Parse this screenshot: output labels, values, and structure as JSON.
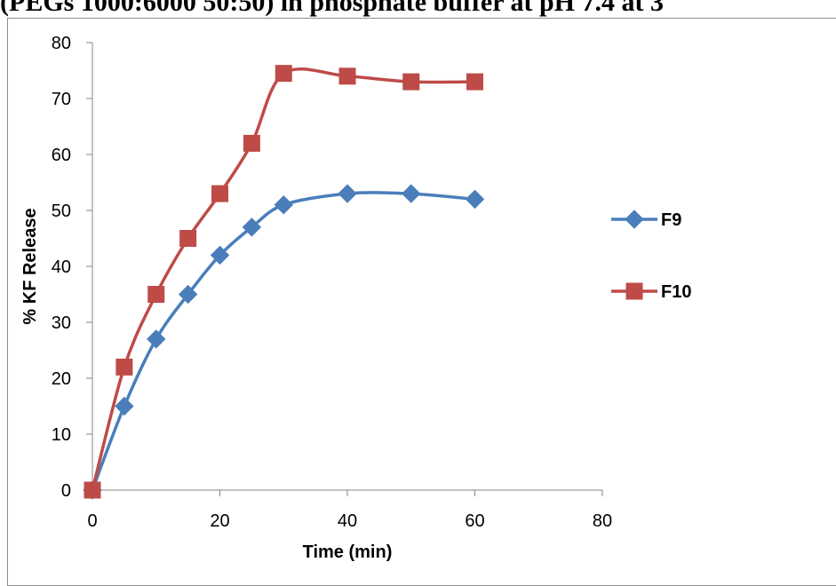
{
  "page": {
    "title_fragment": "(PEGs 1000:6000 50:50) in phosphate buffer at pH 7.4 at 3"
  },
  "chart_data": {
    "type": "line",
    "title": "",
    "xlabel": "Time (min)",
    "ylabel": "% KF Release",
    "xlim": [
      0,
      80
    ],
    "ylim": [
      0,
      80
    ],
    "xticks": [
      0,
      20,
      40,
      60,
      80
    ],
    "yticks": [
      0,
      10,
      20,
      30,
      40,
      50,
      60,
      70,
      80
    ],
    "grid": false,
    "legend": "right",
    "series": [
      {
        "name": "F9",
        "color": "#4a7ebb",
        "marker": "diamond",
        "x": [
          0,
          5,
          10,
          15,
          20,
          25,
          30,
          40,
          50,
          60
        ],
        "y": [
          0,
          15,
          27,
          35,
          42,
          47,
          51,
          53,
          53,
          52
        ]
      },
      {
        "name": "F10",
        "color": "#be4b48",
        "marker": "square",
        "x": [
          0,
          5,
          10,
          15,
          20,
          25,
          30,
          40,
          50,
          60
        ],
        "y": [
          0,
          22,
          35,
          45,
          53,
          62,
          74.5,
          74,
          73,
          73
        ]
      }
    ]
  }
}
